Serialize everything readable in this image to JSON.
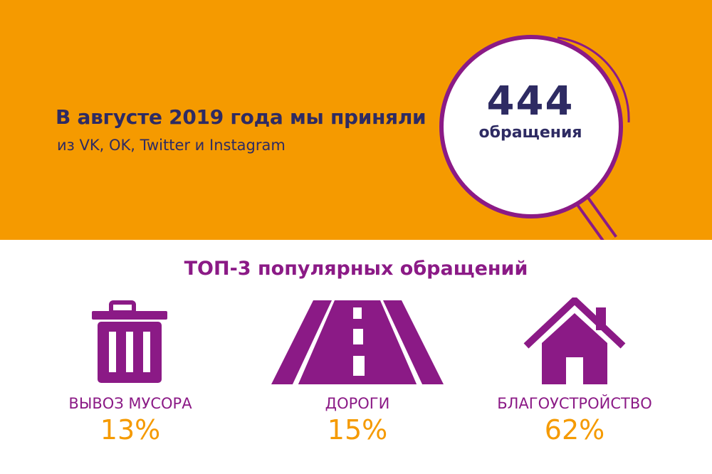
{
  "headline": {
    "title": "В августе 2019 года мы приняли",
    "subtitle": "из VK, OK, Twitter и Instagram"
  },
  "counter": {
    "value": "444",
    "label": "обращения"
  },
  "top": {
    "title": "ТОП-3 популярных обращений",
    "categories": [
      {
        "label": "ВЫВОЗ МУСОРА",
        "percent": "13%",
        "icon": "trash-can-icon"
      },
      {
        "label": "ДОРОГИ",
        "percent": "15%",
        "icon": "road-icon"
      },
      {
        "label": "БЛАГОУСТРОЙСТВО",
        "percent": "62%",
        "icon": "house-icon"
      }
    ]
  },
  "colors": {
    "orange": "#f59a00",
    "navy": "#2e2b63",
    "purple": "#8b1a86"
  }
}
